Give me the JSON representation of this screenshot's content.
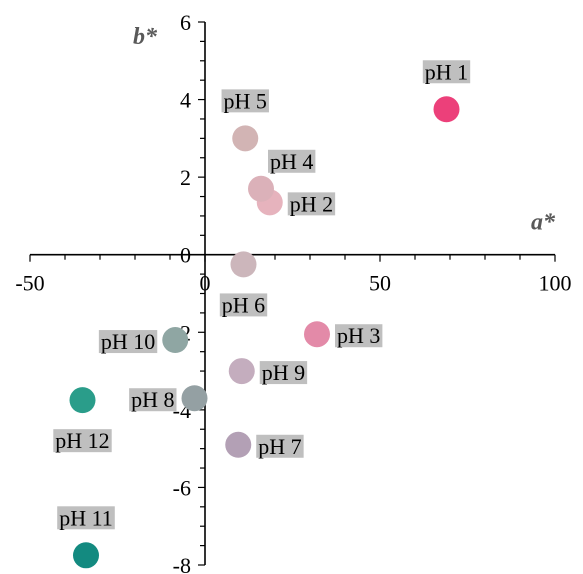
{
  "chart_data": {
    "type": "scatter",
    "title": "",
    "xlabel": "a*",
    "ylabel": "b*",
    "xlim": [
      -50,
      100
    ],
    "ylim": [
      -8,
      6
    ],
    "x_ticks": [
      -50,
      0,
      50,
      100
    ],
    "y_ticks": [
      -8,
      -6,
      -4,
      -2,
      0,
      2,
      4,
      6
    ],
    "grid": false,
    "legend": "none",
    "points": [
      {
        "label": "pH 1",
        "x": 69,
        "y": 3.75,
        "color": "#ec407a",
        "label_pos": "above"
      },
      {
        "label": "pH 2",
        "x": 18.5,
        "y": 1.35,
        "color": "#e6b3bd",
        "label_pos": "right"
      },
      {
        "label": "pH 3",
        "x": 32,
        "y": -2.05,
        "color": "#e38aa8",
        "label_pos": "right"
      },
      {
        "label": "pH 4",
        "x": 16,
        "y": 1.7,
        "color": "#dbb1b9",
        "label_pos": "above-right"
      },
      {
        "label": "pH 5",
        "x": 11.5,
        "y": 3.0,
        "color": "#d2b4b4",
        "label_pos": "above"
      },
      {
        "label": "pH 6",
        "x": 11,
        "y": -0.25,
        "color": "#ccb6bb",
        "label_pos": "below"
      },
      {
        "label": "pH 7",
        "x": 9.5,
        "y": -4.9,
        "color": "#b3a0b5",
        "label_pos": "right"
      },
      {
        "label": "pH 8",
        "x": -3,
        "y": -3.7,
        "color": "#94a0a3",
        "label_pos": "left"
      },
      {
        "label": "pH 9",
        "x": 10.5,
        "y": -3.0,
        "color": "#c4adbe",
        "label_pos": "right"
      },
      {
        "label": "pH 10",
        "x": -8.5,
        "y": -2.2,
        "color": "#8fa6a3",
        "label_pos": "left"
      },
      {
        "label": "pH 11",
        "x": -34,
        "y": -7.75,
        "color": "#138a80",
        "label_pos": "above"
      },
      {
        "label": "pH 12",
        "x": -35,
        "y": -3.75,
        "color": "#2a9d8a",
        "label_pos": "below"
      }
    ]
  }
}
